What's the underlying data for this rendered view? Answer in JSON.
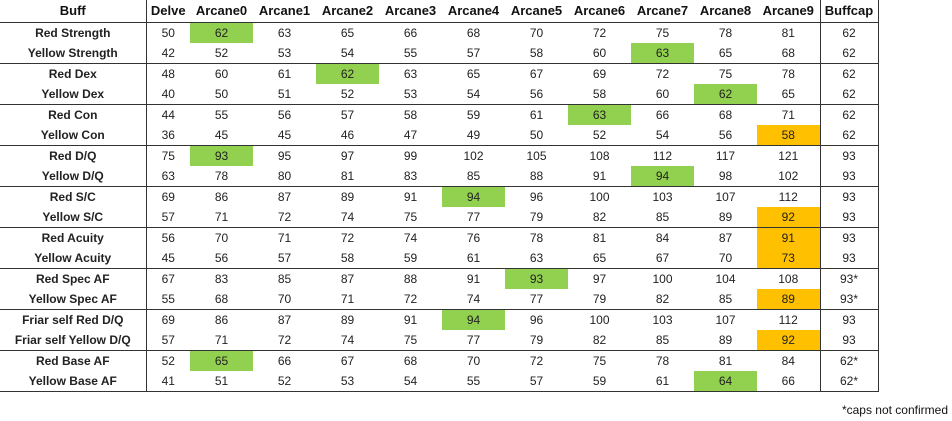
{
  "columns": [
    "Buff",
    "Delve",
    "Arcane0",
    "Arcane1",
    "Arcane2",
    "Arcane3",
    "Arcane4",
    "Arcane5",
    "Arcane6",
    "Arcane7",
    "Arcane8",
    "Arcane9",
    "Buffcap"
  ],
  "colors": {
    "red_text": "#c00000",
    "yellow_text": "#e8a100",
    "green_highlight": "#92d050",
    "orange_highlight": "#ffc000"
  },
  "rows": [
    {
      "name": "Red Strength",
      "color": "red",
      "values": [
        "50",
        "62",
        "63",
        "65",
        "66",
        "68",
        "70",
        "72",
        "75",
        "78",
        "81",
        "62"
      ],
      "hl": {
        "1": "green"
      }
    },
    {
      "name": "Yellow Strength",
      "color": "yellow",
      "values": [
        "42",
        "52",
        "53",
        "54",
        "55",
        "57",
        "58",
        "60",
        "63",
        "65",
        "68",
        "62"
      ],
      "hl": {
        "8": "green"
      },
      "end": true
    },
    {
      "name": "Red Dex",
      "color": "red",
      "values": [
        "48",
        "60",
        "61",
        "62",
        "63",
        "65",
        "67",
        "69",
        "72",
        "75",
        "78",
        "62"
      ],
      "hl": {
        "3": "green"
      }
    },
    {
      "name": "Yellow Dex",
      "color": "yellow",
      "values": [
        "40",
        "50",
        "51",
        "52",
        "53",
        "54",
        "56",
        "58",
        "60",
        "62",
        "65",
        "62"
      ],
      "hl": {
        "9": "green"
      },
      "end": true
    },
    {
      "name": "Red Con",
      "color": "red",
      "values": [
        "44",
        "55",
        "56",
        "57",
        "58",
        "59",
        "61",
        "63",
        "66",
        "68",
        "71",
        "62"
      ],
      "hl": {
        "7": "green"
      }
    },
    {
      "name": "Yellow Con",
      "color": "yellow",
      "values": [
        "36",
        "45",
        "45",
        "46",
        "47",
        "49",
        "50",
        "52",
        "54",
        "56",
        "58",
        "62"
      ],
      "hl": {
        "10": "orange"
      },
      "end": true
    },
    {
      "name": "Red D/Q",
      "color": "red",
      "values": [
        "75",
        "93",
        "95",
        "97",
        "99",
        "102",
        "105",
        "108",
        "112",
        "117",
        "121",
        "93"
      ],
      "hl": {
        "1": "green"
      }
    },
    {
      "name": "Yellow D/Q",
      "color": "yellow",
      "values": [
        "63",
        "78",
        "80",
        "81",
        "83",
        "85",
        "88",
        "91",
        "94",
        "98",
        "102",
        "93"
      ],
      "hl": {
        "8": "green"
      },
      "end": true
    },
    {
      "name": "Red S/C",
      "color": "red",
      "values": [
        "69",
        "86",
        "87",
        "89",
        "91",
        "94",
        "96",
        "100",
        "103",
        "107",
        "112",
        "93"
      ],
      "hl": {
        "5": "green"
      }
    },
    {
      "name": "Yellow S/C",
      "color": "yellow",
      "values": [
        "57",
        "71",
        "72",
        "74",
        "75",
        "77",
        "79",
        "82",
        "85",
        "89",
        "92",
        "93"
      ],
      "hl": {
        "10": "orange"
      },
      "end": true
    },
    {
      "name": "Red Acuity",
      "color": "red",
      "values": [
        "56",
        "70",
        "71",
        "72",
        "74",
        "76",
        "78",
        "81",
        "84",
        "87",
        "91",
        "93"
      ],
      "hl": {
        "10": "orange"
      }
    },
    {
      "name": "Yellow Acuity",
      "color": "yellow",
      "values": [
        "45",
        "56",
        "57",
        "58",
        "59",
        "61",
        "63",
        "65",
        "67",
        "70",
        "73",
        "93"
      ],
      "hl": {
        "10": "orange"
      },
      "end": true
    },
    {
      "name": "Red Spec AF",
      "color": "red",
      "values": [
        "67",
        "83",
        "85",
        "87",
        "88",
        "91",
        "93",
        "97",
        "100",
        "104",
        "108",
        "93*"
      ],
      "hl": {
        "6": "green"
      }
    },
    {
      "name": "Yellow Spec AF",
      "color": "yellow",
      "values": [
        "55",
        "68",
        "70",
        "71",
        "72",
        "74",
        "77",
        "79",
        "82",
        "85",
        "89",
        "93*"
      ],
      "hl": {
        "10": "orange"
      },
      "end": true
    },
    {
      "name": "Friar self Red D/Q",
      "color": "red",
      "values": [
        "69",
        "86",
        "87",
        "89",
        "91",
        "94",
        "96",
        "100",
        "103",
        "107",
        "112",
        "93"
      ],
      "hl": {
        "5": "green"
      }
    },
    {
      "name": "Friar self Yellow D/Q",
      "color": "yellow",
      "values": [
        "57",
        "71",
        "72",
        "74",
        "75",
        "77",
        "79",
        "82",
        "85",
        "89",
        "92",
        "93"
      ],
      "hl": {
        "10": "orange"
      },
      "end": true
    },
    {
      "name": "Red Base AF",
      "color": "red",
      "values": [
        "52",
        "65",
        "66",
        "67",
        "68",
        "70",
        "72",
        "75",
        "78",
        "81",
        "84",
        "62*"
      ],
      "hl": {
        "1": "green"
      }
    },
    {
      "name": "Yellow Base AF",
      "color": "yellow",
      "values": [
        "41",
        "51",
        "52",
        "53",
        "54",
        "55",
        "57",
        "59",
        "61",
        "64",
        "66",
        "62*"
      ],
      "hl": {
        "9": "green"
      },
      "end": true
    }
  ],
  "footnote": "*caps not confirmed"
}
